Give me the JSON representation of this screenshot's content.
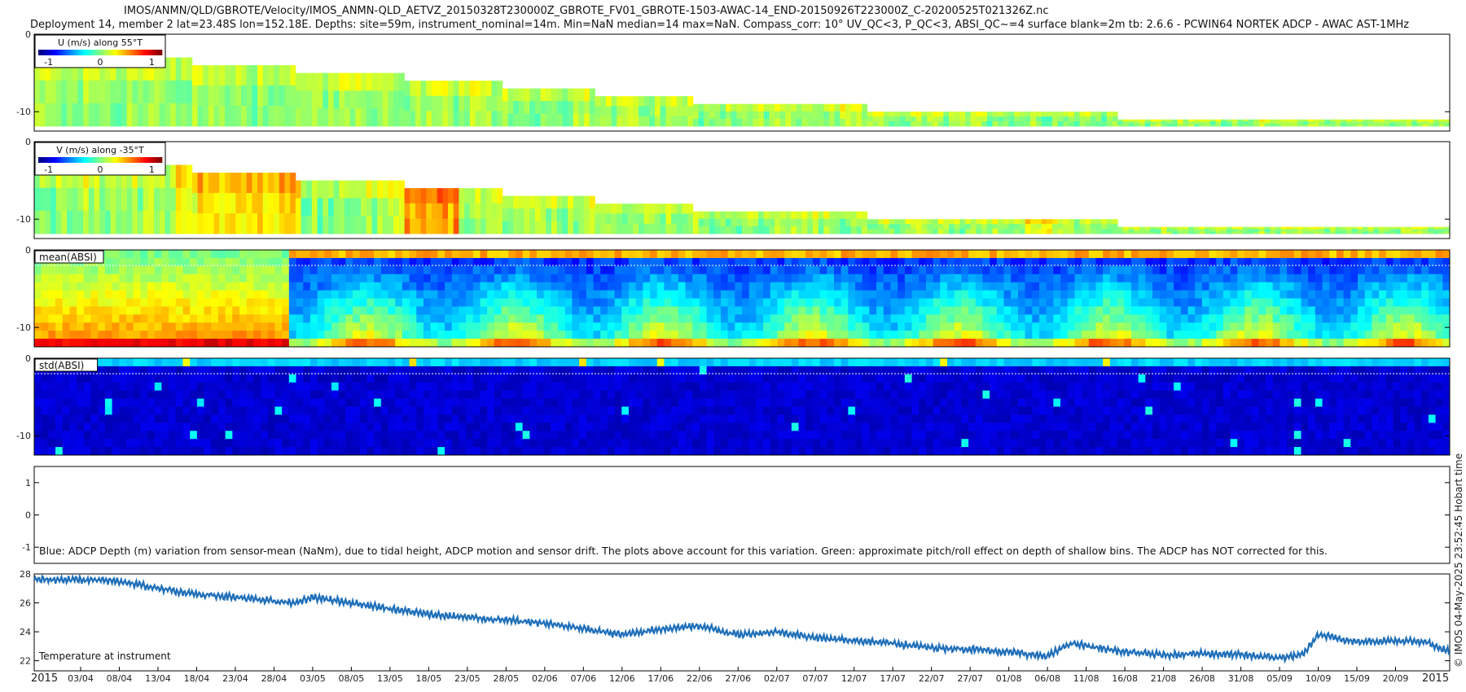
{
  "figure": {
    "title_line1": "IMOS/ANMN/QLD/GBROTE/Velocity/IMOS_ANMN-QLD_AETVZ_20150328T230000Z_GBROTE_FV01_GBROTE-1503-AWAC-14_END-20150926T223000Z_C-20200525T021326Z.nc",
    "title_line2": "Deployment 14, member 2 lat=23.48S lon=152.18E. Depths: site=59m, instrument_nominal=14m. Min=NaN median=14 max=NaN. Compass_corr: 10° UV_QC<3, P_QC<3, ABSI_QC~=4 surface blank=2m tb: 2.6.6 - PCWIN64 NORTEK ADCP - AWAC AST-1MHz",
    "side_stamp": "© IMOS 04-May-2025 23:52:45 Hobart time",
    "year_start": "2015",
    "year_end": "2015"
  },
  "chart_data": [
    {
      "type": "heatmap",
      "panel": "U",
      "legend_title": "U (m/s) along 55°T",
      "colorbar_ticks": [
        "-1",
        "0",
        "1"
      ],
      "colormap": "jet",
      "clim": [
        -1.2,
        1.2
      ],
      "y_ticks": [
        "0",
        "-10"
      ],
      "ylim": [
        -12.5,
        0
      ],
      "surface_step_depths_m": [
        -3,
        -4,
        -5,
        -6,
        -7,
        -8,
        -9,
        -10,
        -11
      ],
      "typical_value_range": [
        -0.2,
        0.3
      ]
    },
    {
      "type": "heatmap",
      "panel": "V",
      "legend_title": "V (m/s) along -35°T",
      "colorbar_ticks": [
        "-1",
        "0",
        "1"
      ],
      "colormap": "jet",
      "clim": [
        -1.2,
        1.2
      ],
      "y_ticks": [
        "0",
        "-10"
      ],
      "ylim": [
        -12.5,
        0
      ],
      "surface_step_depths_m": [
        -3,
        -4,
        -5,
        -6,
        -7,
        -8,
        -9,
        -10,
        -11
      ],
      "typical_value_range": [
        -0.2,
        0.6
      ]
    },
    {
      "type": "heatmap",
      "panel": "mean_absi",
      "label": "mean(ABSI)",
      "colormap": "jet",
      "y_ticks": [
        "0",
        "-10"
      ],
      "ylim": [
        -12.5,
        0
      ],
      "blank_line_depth_m": -2
    },
    {
      "type": "heatmap",
      "panel": "std_absi",
      "label": "std(ABSI)",
      "colormap": "jet",
      "y_ticks": [
        "0",
        "-10"
      ],
      "ylim": [
        -12.5,
        0
      ],
      "blank_line_depth_m": -2
    },
    {
      "type": "line",
      "panel": "depth_variation",
      "y_ticks": [
        "1",
        "0",
        "-1"
      ],
      "ylim": [
        -1.5,
        1.5
      ],
      "annotation": "Blue: ADCP Depth (m) variation from sensor-mean (NaNm), due to tidal height, ADCP motion and sensor drift. The plots above account for this variation. Green: approximate pitch/roll effect on depth of shallow bins. The ADCP has NOT corrected for this.",
      "series": []
    },
    {
      "type": "line",
      "panel": "temperature",
      "label": "Temperature at instrument",
      "y_ticks": [
        "28",
        "26",
        "24",
        "22"
      ],
      "ylim": [
        21.3,
        28
      ],
      "xlim": [
        "2015-03-28",
        "2015-09-27"
      ],
      "series_color": "#1f6fb9",
      "x": [
        "2015-03-28",
        "2015-04-03",
        "2015-04-08",
        "2015-04-13",
        "2015-04-18",
        "2015-04-23",
        "2015-04-28",
        "2015-05-01",
        "2015-05-03",
        "2015-05-08",
        "2015-05-13",
        "2015-05-18",
        "2015-05-23",
        "2015-05-28",
        "2015-06-02",
        "2015-06-07",
        "2015-06-12",
        "2015-06-17",
        "2015-06-22",
        "2015-06-27",
        "2015-07-02",
        "2015-07-07",
        "2015-07-12",
        "2015-07-17",
        "2015-07-22",
        "2015-07-27",
        "2015-08-01",
        "2015-08-06",
        "2015-08-09",
        "2015-08-16",
        "2015-08-21",
        "2015-08-26",
        "2015-08-31",
        "2015-09-05",
        "2015-09-08",
        "2015-09-10",
        "2015-09-15",
        "2015-09-20",
        "2015-09-24",
        "2015-09-27"
      ],
      "y": [
        27.6,
        27.6,
        27.5,
        27.0,
        26.6,
        26.4,
        26.1,
        26.0,
        26.4,
        26.0,
        25.6,
        25.2,
        25.0,
        24.8,
        24.6,
        24.2,
        23.8,
        24.2,
        24.4,
        23.8,
        24.0,
        23.6,
        23.4,
        23.2,
        22.9,
        22.8,
        22.6,
        22.3,
        23.2,
        22.6,
        22.4,
        22.5,
        22.4,
        22.2,
        22.4,
        23.8,
        23.3,
        23.4,
        23.3,
        22.6
      ]
    }
  ],
  "x_axis": {
    "date_ticks": [
      "03/04",
      "08/04",
      "13/04",
      "18/04",
      "23/04",
      "28/04",
      "03/05",
      "08/05",
      "13/05",
      "18/05",
      "23/05",
      "28/05",
      "02/06",
      "07/06",
      "12/06",
      "17/06",
      "22/06",
      "27/06",
      "02/07",
      "07/07",
      "12/07",
      "17/07",
      "22/07",
      "27/07",
      "01/08",
      "06/08",
      "11/08",
      "16/08",
      "21/08",
      "26/08",
      "31/08",
      "05/09",
      "10/09",
      "15/09",
      "20/09"
    ]
  },
  "colors": {
    "jet_dark": "#00008f",
    "jet_red": "#800000",
    "temperature_line": "#1f6fb9"
  }
}
